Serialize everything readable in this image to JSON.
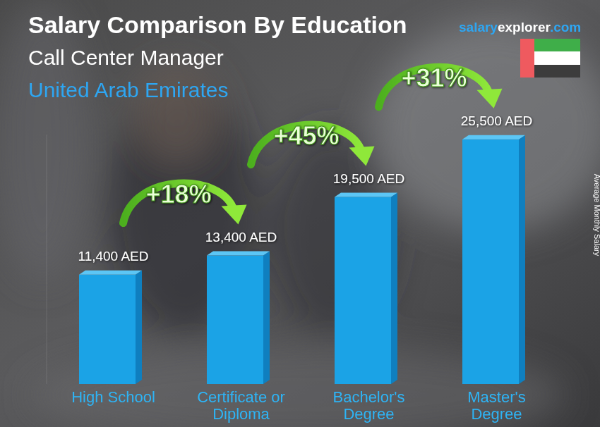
{
  "chart_data": {
    "type": "bar",
    "title": "Salary Comparison By Education",
    "subtitle": "Call Center Manager",
    "location": "United Arab Emirates",
    "source": [
      "salary",
      "explorer",
      ".com"
    ],
    "y_label": "Average Monthly Salary",
    "categories": [
      "High School",
      "Certificate or Diploma",
      "Bachelor's Degree",
      "Master's Degree"
    ],
    "values": [
      11400,
      13400,
      19500,
      25500
    ],
    "value_labels": [
      "11,400 AED",
      "13,400 AED",
      "19,500 AED",
      "25,500 AED"
    ],
    "annotations": [
      "+18%",
      "+45%",
      "+31%"
    ],
    "color": "#1ba3e6",
    "ylim": [
      0,
      26000
    ],
    "data_labels": true,
    "tick_labels": false,
    "grid": false
  }
}
